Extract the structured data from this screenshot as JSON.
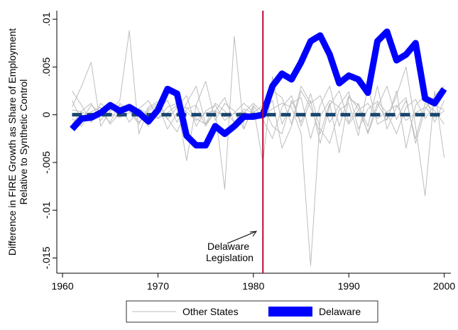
{
  "chart_data": {
    "type": "line",
    "ylabel": [
      "Difference in FIRE Growth as Share of Employment",
      "Relative to Synthetic Control"
    ],
    "x": [
      1961,
      1962,
      1963,
      1964,
      1965,
      1966,
      1967,
      1968,
      1969,
      1970,
      1971,
      1972,
      1973,
      1974,
      1975,
      1976,
      1977,
      1978,
      1979,
      1980,
      1981,
      1982,
      1983,
      1984,
      1985,
      1986,
      1987,
      1988,
      1989,
      1990,
      1991,
      1992,
      1993,
      1994,
      1995,
      1996,
      1997,
      1998,
      1999,
      2000
    ],
    "xlim": [
      1959.4,
      2000.7
    ],
    "xticks": [
      1960,
      1970,
      1980,
      1990,
      2000
    ],
    "ylim": [
      -0.0166,
      0.0109
    ],
    "yticks": [
      {
        "value": 0.01,
        "label": ".01"
      },
      {
        "value": 0.005,
        "label": ".005"
      },
      0,
      {
        "value": -0.005,
        "label": "-.005"
      },
      {
        "value": -0.01,
        "label": "-.01"
      },
      {
        "value": -0.015,
        "label": "-.015"
      }
    ],
    "hline": 0,
    "hline_color": "#1a476f",
    "vline": 1981,
    "vline_color": "#c10534",
    "annotation": [
      "Delaware",
      "Legislation"
    ],
    "series": [
      {
        "name": "Other States",
        "color": "#bdbdbd",
        "values": [
          [
            0.0005,
            0.0003,
            -0.0002,
            0.0004,
            0.0001,
            -0.0003,
            0.0002,
            0.0006,
            0.0001,
            -0.0004,
            0.0002,
            0.001,
            0.0003,
            -0.0006,
            0.0002,
            0.0004,
            -0.0002,
            0.0001,
            0.0003,
            -0.0001,
            0,
            0.0006,
            0.0012,
            0.0008,
            -0.002,
            -0.0158,
            -0.0002,
            0.0015,
            0.0008,
            -0.001,
            0.0005,
            0.0012,
            -0.0004,
            0.0003,
            0.001,
            -0.0006,
            0.0002,
            0.0008,
            -0.0003,
            0.0004
          ],
          [
            0.0025,
            0.001,
            -0.0008,
            0.0012,
            0.0004,
            0.0015,
            0.0088,
            -0.002,
            0.0006,
            0.0012,
            -0.0005,
            0.0008,
            0.002,
            -0.0012,
            0.0004,
            0.001,
            -0.0006,
            0.0002,
            0.0012,
            0.0003,
            -0.0004,
            0.0025,
            0.0018,
            -0.001,
            0.003,
            0.0012,
            0.002,
            -0.0008,
            0.001,
            0.0024,
            -0.0015,
            0.0006,
            0.0014,
            0.0002,
            -0.002,
            0.0008,
            0.0016,
            -0.0004,
            0.001,
            0.0005
          ],
          [
            -0.001,
            0.0004,
            0.0012,
            -0.0006,
            0.0008,
            -0.0002,
            0.001,
            0.0004,
            -0.0012,
            0.0006,
            0.0015,
            -0.0008,
            0.0012,
            0.003,
            -0.001,
            0.0004,
            -0.0078,
            0.0082,
            -0.0015,
            0.001,
            -0.0005,
            -0.0025,
            0.0008,
            0.002,
            -0.0012,
            0.0015,
            -0.003,
            0.001,
            0.0025,
            -0.0008,
            0.0012,
            -0.002,
            0.0008,
            0.003,
            -0.0005,
            0.0015,
            -0.0025,
            0.0012,
            0.0004,
            -0.001
          ],
          [
            0.0008,
            0.003,
            0.0055,
            -0.0012,
            0.0004,
            0.001,
            -0.0008,
            0.0006,
            0.0015,
            -0.0004,
            0.0008,
            0.0012,
            -0.0048,
            0.001,
            0.0035,
            -0.0006,
            0.0012,
            0.0004,
            -0.0015,
            0.0008,
            -0.005,
            0.004,
            -0.001,
            0.0012,
            0.0018,
            -0.0025,
            0.001,
            0.003,
            -0.0012,
            0.002,
            0.0006,
            -0.0018,
            0.0012,
            -0.0006,
            0.0025,
            -0.0035,
            0.001,
            0.002,
            -0.0008,
            0.0015
          ],
          [
            -0.0004,
            -0.0012,
            0.0003,
            0.0008,
            -0.001,
            0.0002,
            0.0006,
            -0.0008,
            0.0004,
            0.001,
            -0.0015,
            0.0002,
            0.0008,
            -0.0004,
            -0.001,
            0.0012,
            0.0004,
            -0.0008,
            0.0006,
            0.0002,
            0.001,
            -0.0012,
            -0.002,
            0.0015,
            -0.0008,
            0.0022,
            -0.0015,
            -0.003,
            0.0005,
            0.0012,
            -0.0022,
            0.003,
            -0.001,
            -0.0004,
            0.002,
            0.005,
            -0.0012,
            -0.0085,
            0.0025,
            -0.0045
          ],
          [
            0.0015,
            -0.0006,
            0.001,
            0.0002,
            -0.0008,
            0.0012,
            0.0004,
            -0.001,
            0.0008,
            0.0014,
            -0.0004,
            -0.0018,
            0.0006,
            0.001,
            -0.0012,
            0.0004,
            0.0018,
            -0.0008,
            0.0002,
            0.0012,
            0.0002,
            0.0015,
            -0.0035,
            -0.0012,
            0.0025,
            0.0008,
            -0.002,
            0.0012,
            -0.004,
            0.0018,
            0.001,
            -0.0012,
            0.003,
            -0.0015,
            0.0008,
            0.0018,
            -0.003,
            0.0006,
            0.002,
            0.003
          ]
        ]
      },
      {
        "name": "Delaware",
        "color": "#0000ff",
        "values": [
          -0.0015,
          -0.0004,
          -0.0003,
          0.0002,
          0.001,
          0.0004,
          0.0008,
          0.0002,
          -0.0007,
          0.0005,
          0.0027,
          0.0022,
          -0.0022,
          -0.0032,
          -0.0032,
          -0.0012,
          -0.002,
          -0.0012,
          -0.0002,
          -0.0002,
          0,
          0.003,
          0.0043,
          0.0037,
          0.0055,
          0.0077,
          0.0083,
          0.0063,
          0.0033,
          0.0041,
          0.0037,
          0.0023,
          0.0077,
          0.0087,
          0.0057,
          0.0063,
          0.0075,
          0.0017,
          0.0012,
          0.0027
        ]
      }
    ]
  }
}
